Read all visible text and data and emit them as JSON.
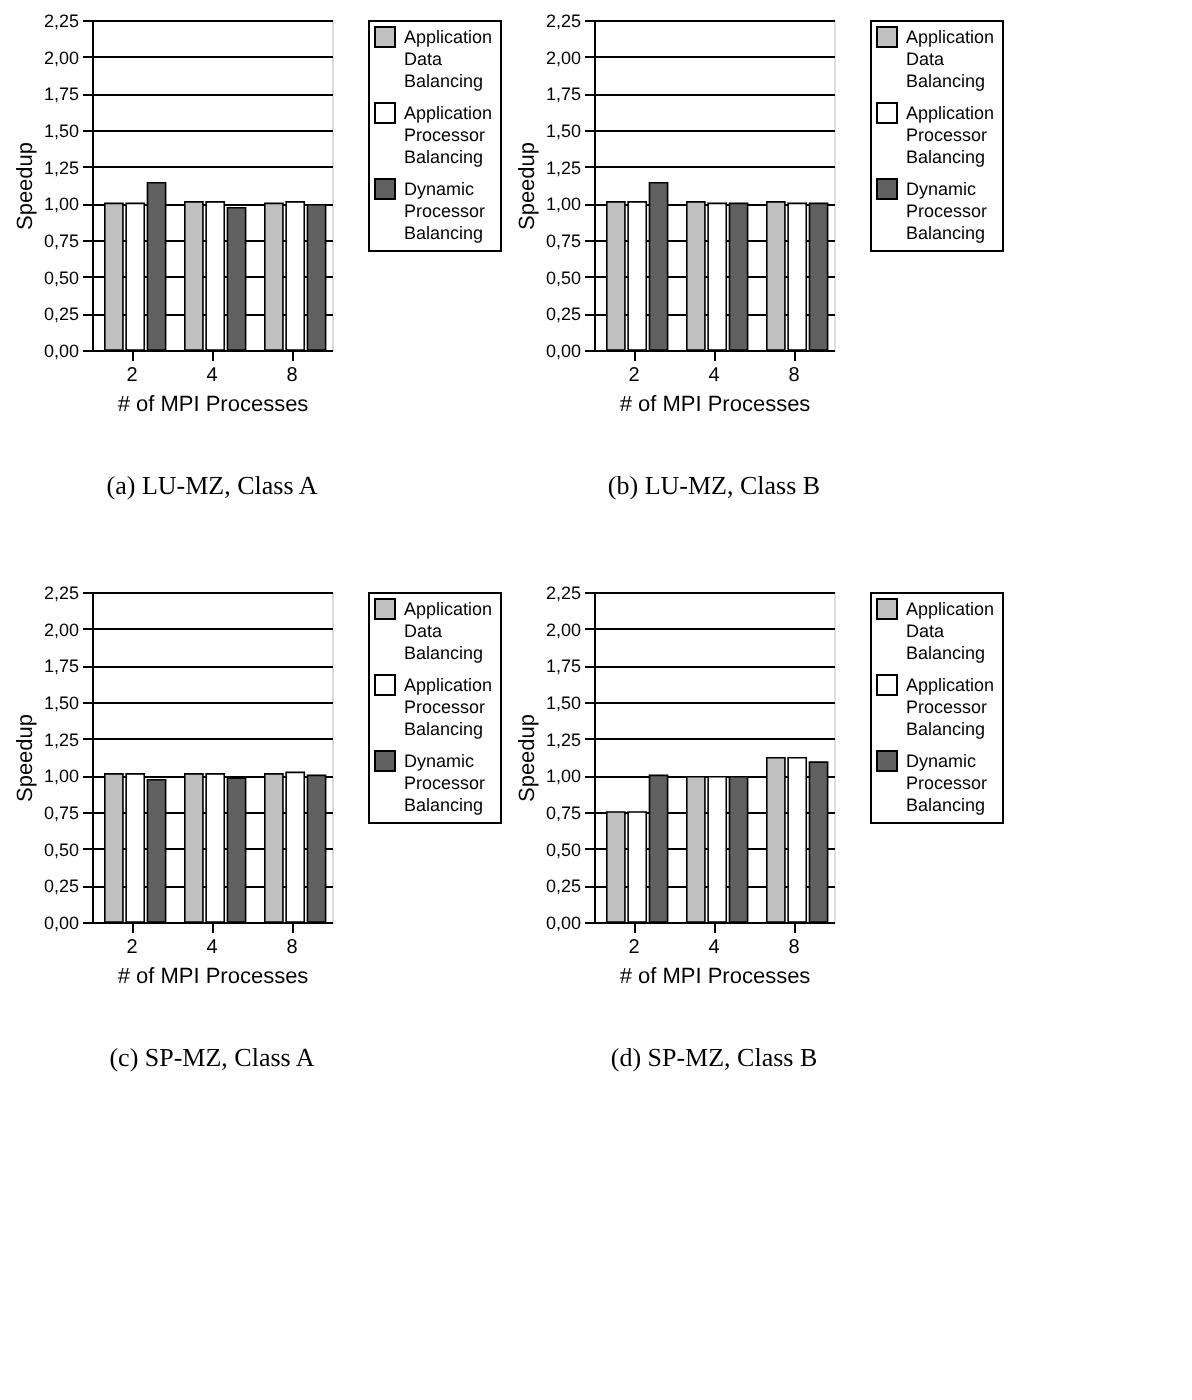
{
  "chart_data": [
    {
      "type": "bar",
      "title": "(a) LU-MZ, Class A",
      "xlabel": "# of MPI Processes",
      "ylabel": "Speedup",
      "categories": [
        "2",
        "4",
        "8"
      ],
      "series": [
        {
          "name": "Application Data Balancing",
          "color": "#c0c0c0",
          "values": [
            1.0,
            1.01,
            1.0
          ]
        },
        {
          "name": "Application Processor Balancing",
          "color": "#ffffff",
          "values": [
            1.0,
            1.01,
            1.01
          ]
        },
        {
          "name": "Dynamic Processor Balancing",
          "color": "#606060",
          "values": [
            1.14,
            0.97,
            0.99
          ]
        }
      ],
      "ylim": [
        0,
        2.25
      ],
      "yticks": [
        {
          "value": 0,
          "label": "0,00"
        },
        {
          "value": 0.25,
          "label": "0,25"
        },
        {
          "value": 0.5,
          "label": "0,50"
        },
        {
          "value": 0.75,
          "label": "0,75"
        },
        {
          "value": 1.0,
          "label": "1,00"
        },
        {
          "value": 1.25,
          "label": "1,25"
        },
        {
          "value": 1.5,
          "label": "1,50"
        },
        {
          "value": 1.75,
          "label": "1,75"
        },
        {
          "value": 2.0,
          "label": "2,00"
        },
        {
          "value": 2.25,
          "label": "2,25"
        }
      ],
      "grid": "y",
      "legend": "right"
    },
    {
      "type": "bar",
      "title": "(b) LU-MZ, Class B",
      "xlabel": "# of MPI Processes",
      "ylabel": "Speedup",
      "categories": [
        "2",
        "4",
        "8"
      ],
      "series": [
        {
          "name": "Application Data Balancing",
          "color": "#c0c0c0",
          "values": [
            1.01,
            1.01,
            1.01
          ]
        },
        {
          "name": "Application Processor Balancing",
          "color": "#ffffff",
          "values": [
            1.01,
            1.0,
            1.0
          ]
        },
        {
          "name": "Dynamic Processor Balancing",
          "color": "#606060",
          "values": [
            1.14,
            1.0,
            1.0
          ]
        }
      ],
      "ylim": [
        0,
        2.25
      ],
      "yticks": [
        {
          "value": 0,
          "label": "0,00"
        },
        {
          "value": 0.25,
          "label": "0,25"
        },
        {
          "value": 0.5,
          "label": "0,50"
        },
        {
          "value": 0.75,
          "label": "0,75"
        },
        {
          "value": 1.0,
          "label": "1,00"
        },
        {
          "value": 1.25,
          "label": "1,25"
        },
        {
          "value": 1.5,
          "label": "1,50"
        },
        {
          "value": 1.75,
          "label": "1,75"
        },
        {
          "value": 2.0,
          "label": "2,00"
        },
        {
          "value": 2.25,
          "label": "2,25"
        }
      ],
      "grid": "y",
      "legend": "right"
    },
    {
      "type": "bar",
      "title": "(c) SP-MZ, Class A",
      "xlabel": "# of MPI Processes",
      "ylabel": "Speedup",
      "categories": [
        "2",
        "4",
        "8"
      ],
      "series": [
        {
          "name": "Application Data Balancing",
          "color": "#c0c0c0",
          "values": [
            1.01,
            1.01,
            1.01
          ]
        },
        {
          "name": "Application Processor Balancing",
          "color": "#ffffff",
          "values": [
            1.01,
            1.01,
            1.02
          ]
        },
        {
          "name": "Dynamic Processor Balancing",
          "color": "#606060",
          "values": [
            0.97,
            0.98,
            1.0
          ]
        }
      ],
      "ylim": [
        0,
        2.25
      ],
      "yticks": [
        {
          "value": 0,
          "label": "0,00"
        },
        {
          "value": 0.25,
          "label": "0,25"
        },
        {
          "value": 0.5,
          "label": "0,50"
        },
        {
          "value": 0.75,
          "label": "0,75"
        },
        {
          "value": 1.0,
          "label": "1,00"
        },
        {
          "value": 1.25,
          "label": "1,25"
        },
        {
          "value": 1.5,
          "label": "1,50"
        },
        {
          "value": 1.75,
          "label": "1,75"
        },
        {
          "value": 2.0,
          "label": "2,00"
        },
        {
          "value": 2.25,
          "label": "2,25"
        }
      ],
      "grid": "y",
      "legend": "right"
    },
    {
      "type": "bar",
      "title": "(d) SP-MZ, Class B",
      "xlabel": "# of MPI Processes",
      "ylabel": "Speedup",
      "categories": [
        "2",
        "4",
        "8"
      ],
      "series": [
        {
          "name": "Application Data Balancing",
          "color": "#c0c0c0",
          "values": [
            0.75,
            0.99,
            1.12
          ]
        },
        {
          "name": "Application Processor Balancing",
          "color": "#ffffff",
          "values": [
            0.75,
            0.99,
            1.12
          ]
        },
        {
          "name": "Dynamic Processor Balancing",
          "color": "#606060",
          "values": [
            1.0,
            0.99,
            1.09
          ]
        }
      ],
      "ylim": [
        0,
        2.25
      ],
      "yticks": [
        {
          "value": 0,
          "label": "0,00"
        },
        {
          "value": 0.25,
          "label": "0,25"
        },
        {
          "value": 0.5,
          "label": "0,50"
        },
        {
          "value": 0.75,
          "label": "0,75"
        },
        {
          "value": 1.0,
          "label": "1,00"
        },
        {
          "value": 1.25,
          "label": "1,25"
        },
        {
          "value": 1.5,
          "label": "1,50"
        },
        {
          "value": 1.75,
          "label": "1,75"
        },
        {
          "value": 2.0,
          "label": "2,00"
        },
        {
          "value": 2.25,
          "label": "2,25"
        }
      ],
      "grid": "y",
      "legend": "right"
    }
  ]
}
